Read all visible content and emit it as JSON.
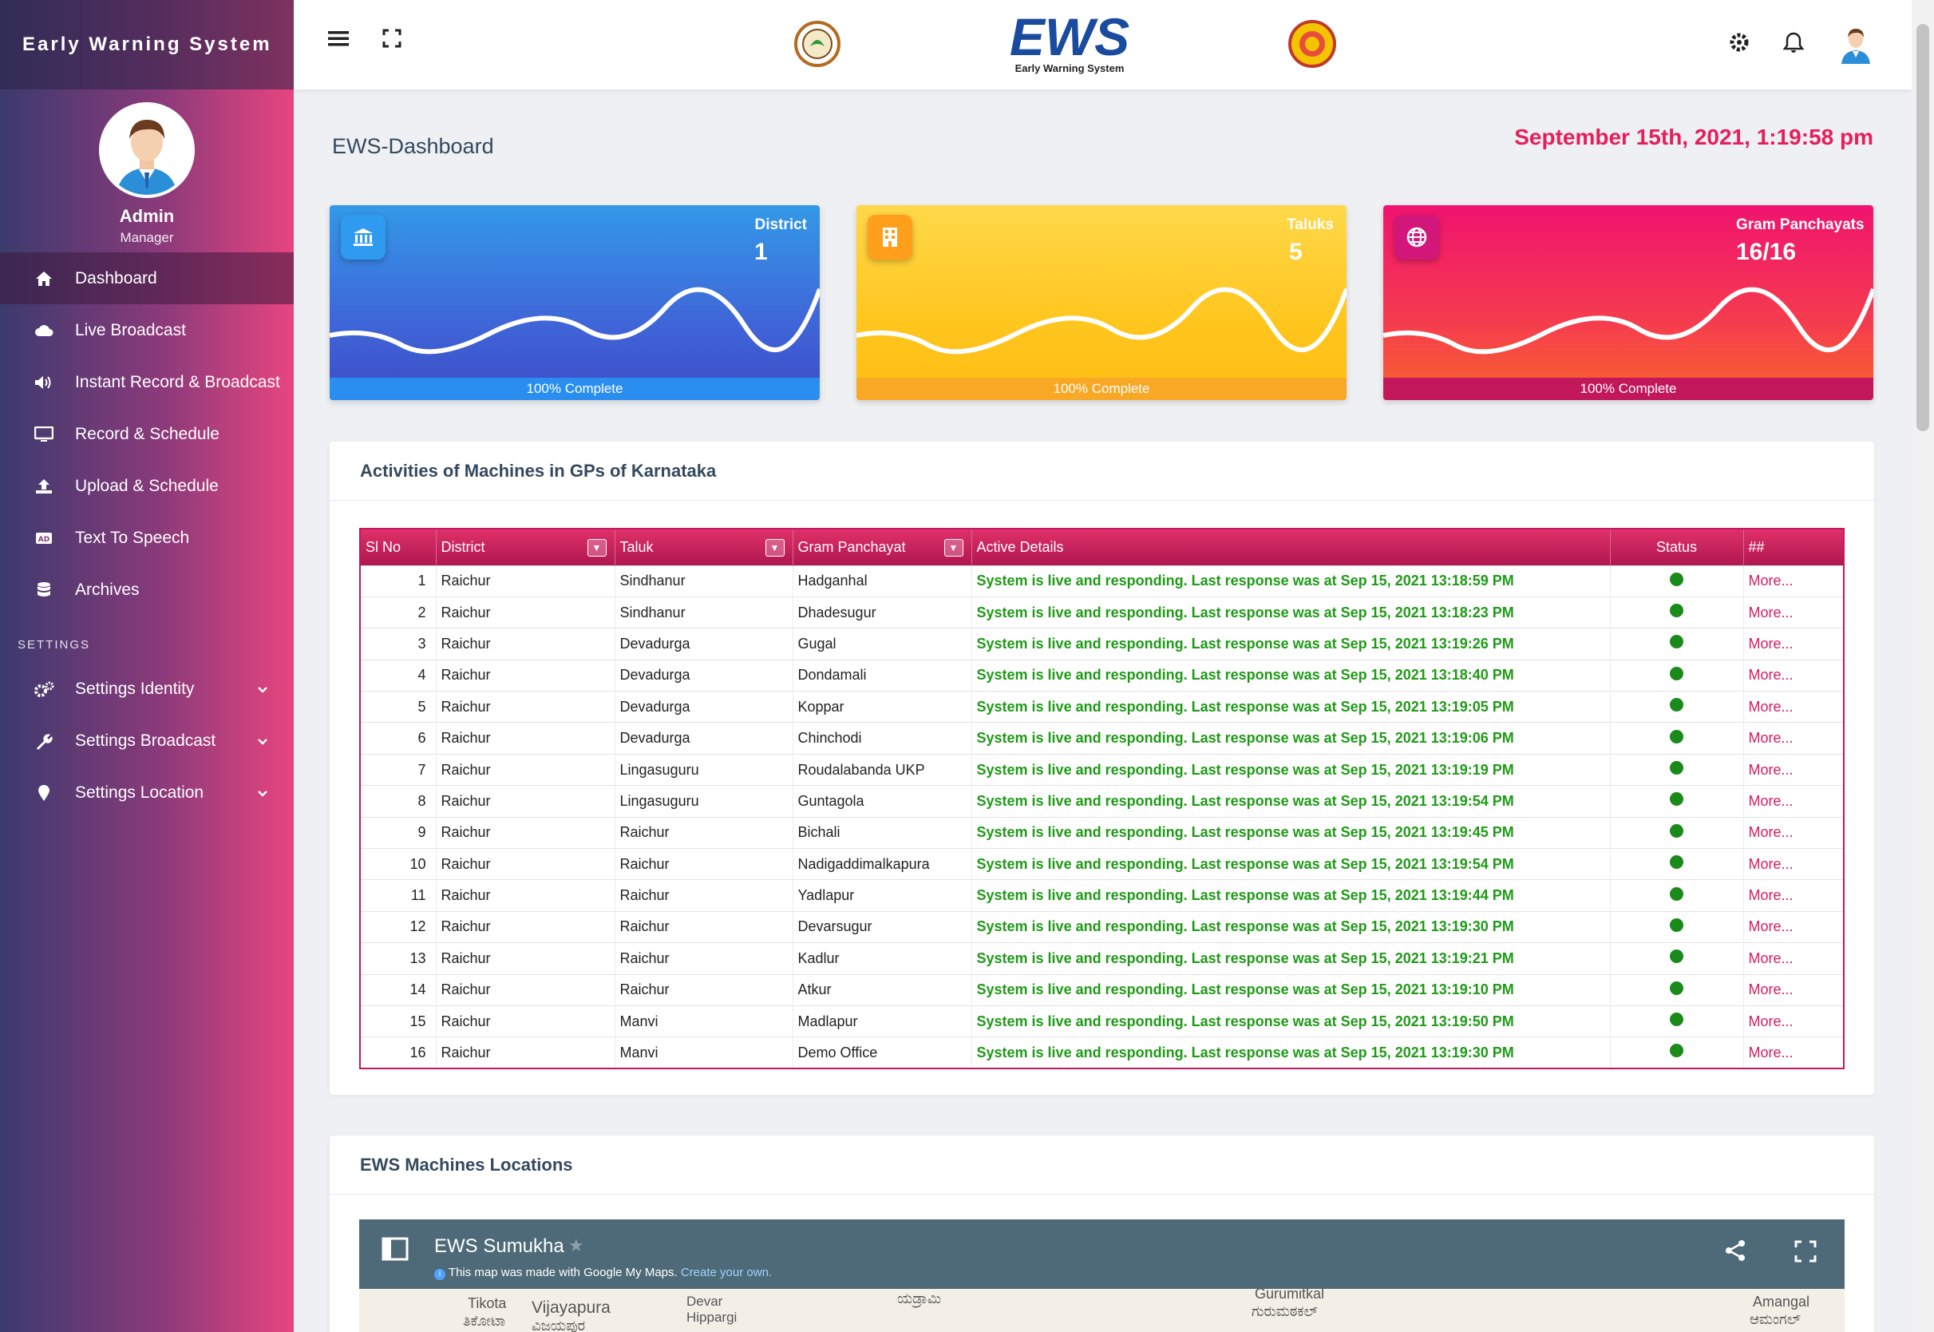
{
  "sidebar": {
    "brand": "Early Warning System",
    "user": {
      "name": "Admin",
      "role": "Manager"
    },
    "items": [
      {
        "label": "Dashboard",
        "icon": "home-icon"
      },
      {
        "label": "Live Broadcast",
        "icon": "cloud-icon"
      },
      {
        "label": "Instant Record & Broadcast",
        "icon": "volume-icon"
      },
      {
        "label": "Record & Schedule",
        "icon": "monitor-icon"
      },
      {
        "label": "Upload & Schedule",
        "icon": "upload-icon"
      },
      {
        "label": "Text To Speech",
        "icon": "ad-icon"
      },
      {
        "label": "Archives",
        "icon": "database-icon"
      }
    ],
    "section_label": "SETTINGS",
    "settings_items": [
      {
        "label": "Settings Identity",
        "icon": "gears-icon"
      },
      {
        "label": "Settings Broadcast",
        "icon": "wrench-icon"
      },
      {
        "label": "Settings Location",
        "icon": "map-pin-icon"
      }
    ]
  },
  "header": {
    "logo_text": "EWS",
    "logo_sub": "Early Warning System"
  },
  "page": {
    "title": "EWS-Dashboard",
    "datetime": "September 15th, 2021, 1:19:58 pm"
  },
  "cards": [
    {
      "label": "District",
      "value": "1",
      "footer": "100% Complete",
      "icon": "bank-icon",
      "progress": 100
    },
    {
      "label": "Taluks",
      "value": "5",
      "footer": "100% Complete",
      "icon": "building-icon",
      "progress": 100
    },
    {
      "label": "Gram Panchayats",
      "value": "16/16",
      "footer": "100% Complete",
      "icon": "globe-icon",
      "progress": 100
    }
  ],
  "activities": {
    "title": "Activities of Machines in GPs of Karnataka",
    "columns": [
      "Sl No",
      "District",
      "Taluk",
      "Gram Panchayat",
      "Active Details",
      "Status",
      "##"
    ],
    "more_label": "More...",
    "rows": [
      [
        "1",
        "Raichur",
        "Sindhanur",
        "Hadganhal",
        "System is live and responding. Last response was at Sep 15, 2021 13:18:59 PM"
      ],
      [
        "2",
        "Raichur",
        "Sindhanur",
        "Dhadesugur",
        "System is live and responding. Last response was at Sep 15, 2021 13:18:23 PM"
      ],
      [
        "3",
        "Raichur",
        "Devadurga",
        "Gugal",
        "System is live and responding. Last response was at Sep 15, 2021 13:19:26 PM"
      ],
      [
        "4",
        "Raichur",
        "Devadurga",
        "Dondamali",
        "System is live and responding. Last response was at Sep 15, 2021 13:18:40 PM"
      ],
      [
        "5",
        "Raichur",
        "Devadurga",
        "Koppar",
        "System is live and responding. Last response was at Sep 15, 2021 13:19:05 PM"
      ],
      [
        "6",
        "Raichur",
        "Devadurga",
        "Chinchodi",
        "System is live and responding. Last response was at Sep 15, 2021 13:19:06 PM"
      ],
      [
        "7",
        "Raichur",
        "Lingasuguru",
        "Roudalabanda UKP",
        "System is live and responding. Last response was at Sep 15, 2021 13:19:19 PM"
      ],
      [
        "8",
        "Raichur",
        "Lingasuguru",
        "Guntagola",
        "System is live and responding. Last response was at Sep 15, 2021 13:19:54 PM"
      ],
      [
        "9",
        "Raichur",
        "Raichur",
        "Bichali",
        "System is live and responding. Last response was at Sep 15, 2021 13:19:45 PM"
      ],
      [
        "10",
        "Raichur",
        "Raichur",
        "Nadigaddimalkapura",
        "System is live and responding. Last response was at Sep 15, 2021 13:19:54 PM"
      ],
      [
        "11",
        "Raichur",
        "Raichur",
        "Yadlapur",
        "System is live and responding. Last response was at Sep 15, 2021 13:19:44 PM"
      ],
      [
        "12",
        "Raichur",
        "Raichur",
        "Devarsugur",
        "System is live and responding. Last response was at Sep 15, 2021 13:19:30 PM"
      ],
      [
        "13",
        "Raichur",
        "Raichur",
        "Kadlur",
        "System is live and responding. Last response was at Sep 15, 2021 13:19:21 PM"
      ],
      [
        "14",
        "Raichur",
        "Raichur",
        "Atkur",
        "System is live and responding. Last response was at Sep 15, 2021 13:19:10 PM"
      ],
      [
        "15",
        "Raichur",
        "Manvi",
        "Madlapur",
        "System is live and responding. Last response was at Sep 15, 2021 13:19:50 PM"
      ],
      [
        "16",
        "Raichur",
        "Manvi",
        "Demo Office",
        "System is live and responding. Last response was at Sep 15, 2021 13:19:30 PM"
      ]
    ]
  },
  "map": {
    "panel_title": "EWS Machines Locations",
    "title": "EWS Sumukha",
    "info": "This map was made with Google My Maps.",
    "link": "Create your own.",
    "places": [
      "Tikota",
      "ತಿಕೋಟಾ",
      "Vijayapura",
      "ವಿಜಯಪುರ",
      "Devar Hippargi",
      "ಯಡ್ರಾಮಿ",
      "Gurumitkal",
      "ಗುರುಮಠಕಲ್",
      "Amangal",
      "ಆಮಂಗಲ್"
    ]
  },
  "colors": {
    "accent": "#e61e5a",
    "status_live": "#1a8a1a",
    "detail_text": "#1e9a16"
  }
}
